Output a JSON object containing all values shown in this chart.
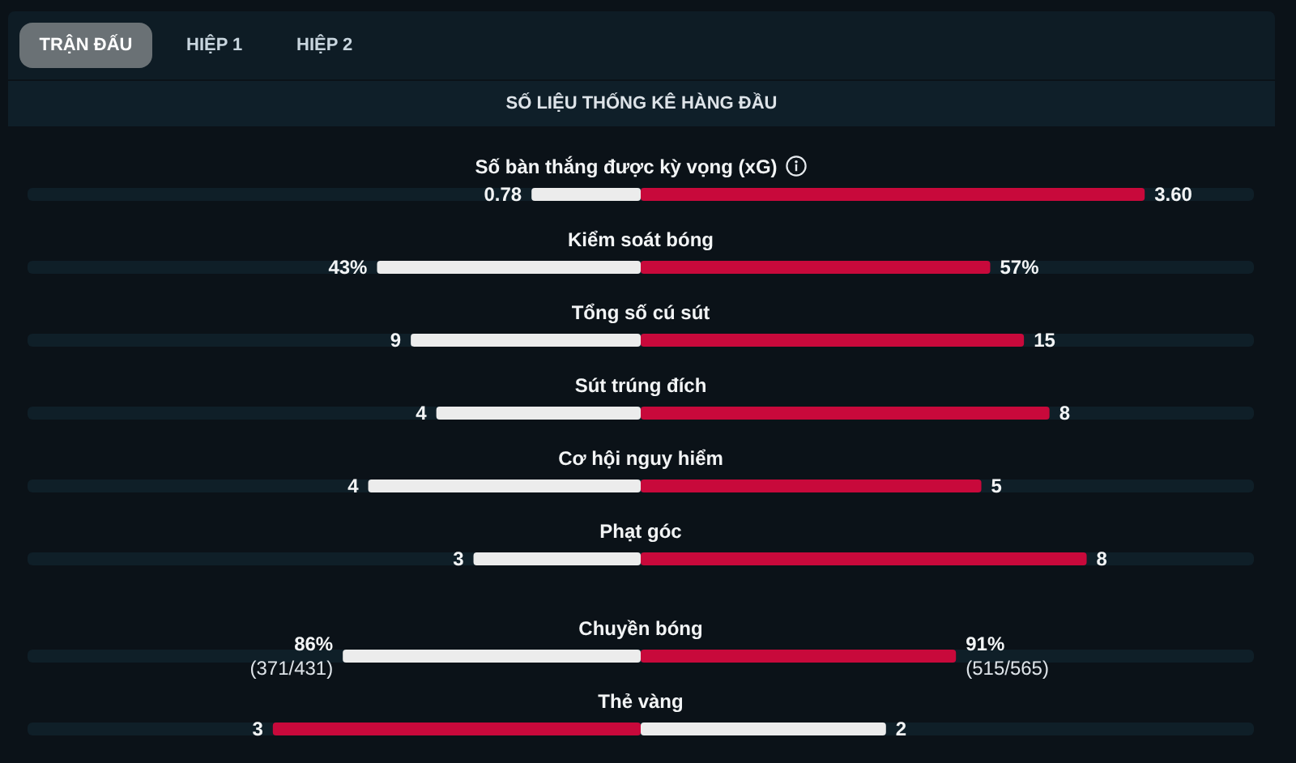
{
  "chart_data": [
    {
      "type": "other",
      "title": "SỐ LIỆU THỐNG KÊ HÀNG ĐẦU",
      "annotations": [
        "TRẬN ĐẤU",
        "HIỆP 1",
        "HIỆP 2"
      ]
    },
    {
      "type": "bar",
      "orientation": "horizontal",
      "stacked": true,
      "title": "Số bàn thắng được kỳ vọng (xG)",
      "categories": [
        null
      ],
      "tick_labels": false,
      "series": [
        {
          "color": "#ececec",
          "values": [
            0.78
          ],
          "value_labels": [
            "0.78"
          ]
        },
        {
          "color": "#c8093b",
          "values": [
            3.6
          ],
          "value_labels": [
            "3.60"
          ]
        }
      ]
    },
    {
      "type": "bar",
      "orientation": "horizontal",
      "stacked": true,
      "title": "Kiểm soát bóng",
      "categories": [
        null
      ],
      "tick_labels": false,
      "series": [
        {
          "color": "#ececec",
          "values": [
            43
          ],
          "value_labels": [
            "43%"
          ]
        },
        {
          "color": "#c8093b",
          "values": [
            57
          ],
          "value_labels": [
            "57%"
          ]
        }
      ]
    },
    {
      "type": "bar",
      "orientation": "horizontal",
      "stacked": true,
      "title": "Tổng số cú sút",
      "categories": [
        null
      ],
      "tick_labels": false,
      "series": [
        {
          "color": "#ececec",
          "values": [
            9
          ],
          "value_labels": [
            "9"
          ]
        },
        {
          "color": "#c8093b",
          "values": [
            15
          ],
          "value_labels": [
            "15"
          ]
        }
      ]
    },
    {
      "type": "bar",
      "orientation": "horizontal",
      "stacked": true,
      "title": "Sút trúng đích",
      "categories": [
        null
      ],
      "tick_labels": false,
      "series": [
        {
          "color": "#ececec",
          "values": [
            4
          ],
          "value_labels": [
            "4"
          ]
        },
        {
          "color": "#c8093b",
          "values": [
            8
          ],
          "value_labels": [
            "8"
          ]
        }
      ]
    },
    {
      "type": "bar",
      "orientation": "horizontal",
      "stacked": true,
      "title": "Cơ hội nguy hiểm",
      "categories": [
        null
      ],
      "tick_labels": false,
      "series": [
        {
          "color": "#ececec",
          "values": [
            4
          ],
          "value_labels": [
            "4"
          ]
        },
        {
          "color": "#c8093b",
          "values": [
            5
          ],
          "value_labels": [
            "5"
          ]
        }
      ]
    },
    {
      "type": "bar",
      "orientation": "horizontal",
      "stacked": true,
      "title": "Phạt góc",
      "categories": [
        null
      ],
      "tick_labels": false,
      "series": [
        {
          "color": "#ececec",
          "values": [
            3
          ],
          "value_labels": [
            "3"
          ]
        },
        {
          "color": "#c8093b",
          "values": [
            8
          ],
          "value_labels": [
            "8"
          ]
        }
      ]
    },
    {
      "type": "bar",
      "orientation": "horizontal",
      "stacked": true,
      "title": "Chuyền bóng",
      "categories": [
        null
      ],
      "tick_labels": false,
      "series": [
        {
          "color": "#ececec",
          "values": [
            86
          ],
          "value_labels": [
            "86%\n(371/431)"
          ]
        },
        {
          "color": "#c8093b",
          "values": [
            91
          ],
          "value_labels": [
            "91%\n(515/565)"
          ]
        }
      ]
    },
    {
      "type": "bar",
      "orientation": "horizontal",
      "stacked": true,
      "title": "Thẻ vàng",
      "categories": [
        null
      ],
      "tick_labels": false,
      "series": [
        {
          "color": "#c8093b",
          "values": [
            3
          ],
          "value_labels": [
            "3"
          ]
        },
        {
          "color": "#ececec",
          "values": [
            2
          ],
          "value_labels": [
            "2"
          ]
        }
      ]
    }
  ]
}
